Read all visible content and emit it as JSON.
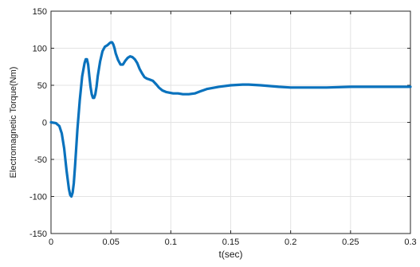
{
  "chart_data": {
    "type": "line",
    "title": "",
    "xlabel": "t(sec)",
    "ylabel": "Electromagnetic Torque(Nm)",
    "xlim": [
      0,
      0.3
    ],
    "ylim": [
      -150,
      150
    ],
    "x_ticks": [
      "0",
      "0.05",
      "0.1",
      "0.15",
      "0.2",
      "0.25",
      "0.3"
    ],
    "x_tick_values": [
      0,
      0.05,
      0.1,
      0.15,
      0.2,
      0.25,
      0.3
    ],
    "y_ticks": [
      "150",
      "100",
      "50",
      "0",
      "-50",
      "-100",
      "-150"
    ],
    "y_tick_values": [
      150,
      100,
      50,
      0,
      -50,
      -100,
      -150
    ],
    "grid": true,
    "series": [
      {
        "color": "#0a72bd",
        "x": [
          0,
          0.004,
          0.007,
          0.009,
          0.011,
          0.013,
          0.015,
          0.016,
          0.017,
          0.018,
          0.019,
          0.02,
          0.021,
          0.022,
          0.024,
          0.026,
          0.028,
          0.029,
          0.03,
          0.031,
          0.032,
          0.033,
          0.034,
          0.035,
          0.036,
          0.037,
          0.038,
          0.039,
          0.041,
          0.043,
          0.045,
          0.047,
          0.049,
          0.05,
          0.051,
          0.052,
          0.053,
          0.054,
          0.056,
          0.058,
          0.06,
          0.062,
          0.064,
          0.066,
          0.068,
          0.07,
          0.072,
          0.074,
          0.076,
          0.078,
          0.08,
          0.082,
          0.085,
          0.088,
          0.09,
          0.093,
          0.096,
          0.099,
          0.102,
          0.106,
          0.11,
          0.115,
          0.12,
          0.125,
          0.13,
          0.14,
          0.15,
          0.16,
          0.165,
          0.175,
          0.19,
          0.2,
          0.21,
          0.23,
          0.25,
          0.27,
          0.29,
          0.3
        ],
        "y": [
          0,
          -1,
          -5,
          -15,
          -35,
          -65,
          -90,
          -98,
          -100,
          -95,
          -82,
          -60,
          -35,
          -10,
          30,
          62,
          80,
          85,
          85,
          78,
          62,
          48,
          38,
          33,
          33,
          38,
          48,
          62,
          82,
          96,
          102,
          104,
          107,
          108,
          108,
          105,
          100,
          93,
          84,
          78,
          78,
          83,
          87,
          89,
          88,
          85,
          80,
          72,
          66,
          61,
          59,
          58,
          56,
          51,
          47,
          43,
          41,
          40,
          39,
          39,
          38,
          38,
          39,
          42,
          45,
          48,
          50,
          51,
          51,
          50,
          48,
          47,
          47,
          47,
          48,
          48,
          48,
          48
        ]
      }
    ]
  }
}
